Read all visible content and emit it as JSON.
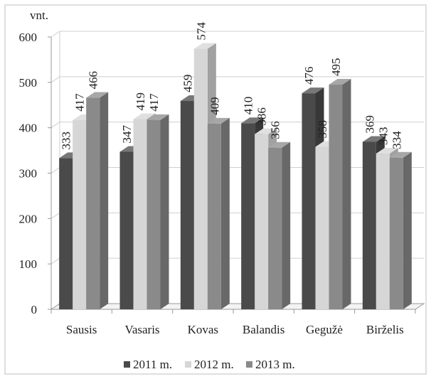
{
  "chart_data": {
    "type": "bar",
    "y_unit_label": "vnt.",
    "categories": [
      "Sausis",
      "Vasaris",
      "Kovas",
      "Balandis",
      "Gegužė",
      "Birželis"
    ],
    "series": [
      {
        "name": "2011 m.",
        "color": "#4a4a4a",
        "values": [
          333,
          347,
          459,
          410,
          476,
          369
        ]
      },
      {
        "name": "2012 m.",
        "color": "#d6d6d6",
        "values": [
          417,
          419,
          574,
          386,
          358,
          343
        ]
      },
      {
        "name": "2013 m.",
        "color": "#8a8a8a",
        "values": [
          466,
          417,
          409,
          356,
          495,
          334
        ]
      }
    ],
    "ylim": [
      0,
      600
    ],
    "yticks": [
      0,
      100,
      200,
      300,
      400,
      500,
      600
    ],
    "grid": true,
    "legend_position": "bottom",
    "data_labels": true,
    "style": "3d-clustered-column"
  }
}
